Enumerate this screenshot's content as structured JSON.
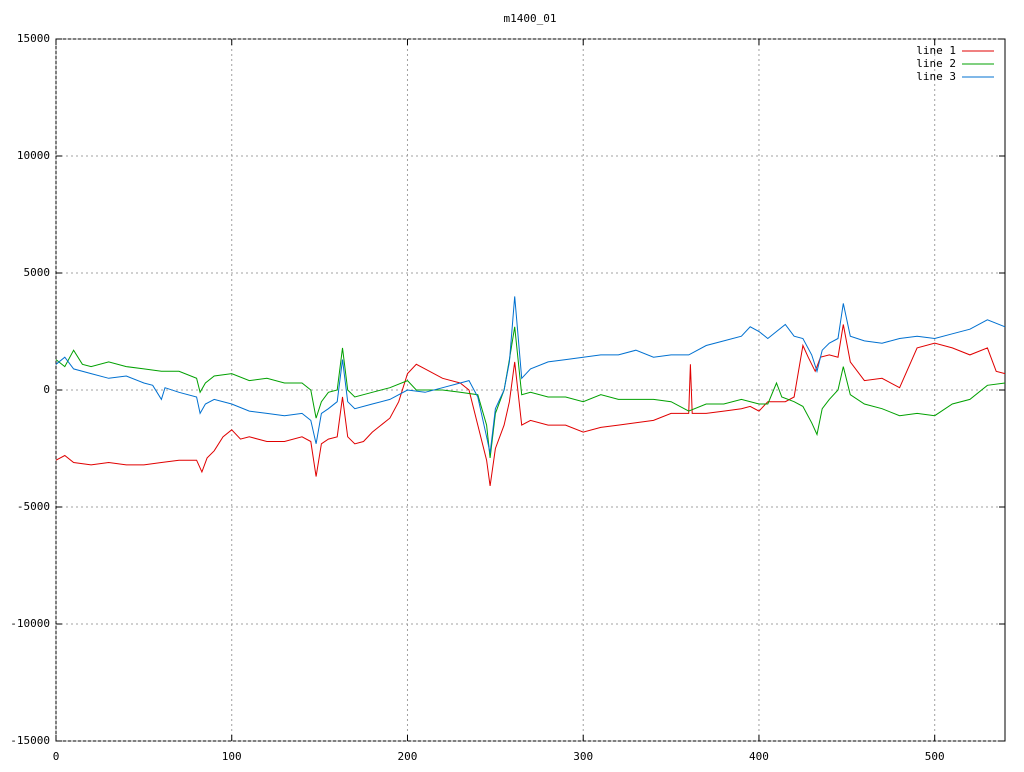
{
  "chart_data": {
    "type": "line",
    "title": "m1400_01",
    "xlim": [
      0,
      540
    ],
    "xticks": [
      0,
      100,
      200,
      300,
      400,
      500
    ],
    "ylim": [
      -15000,
      15000
    ],
    "yticks": [
      -15000,
      -10000,
      -5000,
      0,
      5000,
      10000,
      15000
    ],
    "grid": true,
    "legend": "top-right",
    "series": [
      {
        "name": "line 1",
        "color": "#e00000",
        "x": [
          0,
          5,
          10,
          20,
          30,
          40,
          50,
          60,
          70,
          80,
          83,
          86,
          90,
          95,
          100,
          105,
          110,
          120,
          130,
          140,
          145,
          148,
          151,
          155,
          160,
          163,
          166,
          170,
          175,
          180,
          190,
          195,
          200,
          205,
          210,
          220,
          230,
          235,
          240,
          245,
          247,
          250,
          255,
          258,
          261,
          265,
          270,
          280,
          290,
          300,
          310,
          320,
          330,
          340,
          350,
          360,
          361,
          362,
          370,
          380,
          390,
          395,
          400,
          405,
          410,
          415,
          420,
          425,
          428,
          432,
          435,
          440,
          445,
          448,
          452,
          460,
          470,
          480,
          490,
          500,
          510,
          520,
          530,
          535,
          540
        ],
        "values": [
          -3000,
          -2800,
          -3100,
          -3200,
          -3100,
          -3200,
          -3200,
          -3100,
          -3000,
          -3000,
          -3500,
          -2900,
          -2600,
          -2000,
          -1700,
          -2100,
          -2000,
          -2200,
          -2200,
          -2000,
          -2200,
          -3700,
          -2300,
          -2100,
          -2000,
          -300,
          -2000,
          -2300,
          -2200,
          -1800,
          -1200,
          -500,
          700,
          1100,
          900,
          500,
          300,
          0,
          -1500,
          -3000,
          -4100,
          -2500,
          -1500,
          -500,
          1200,
          -1500,
          -1300,
          -1500,
          -1500,
          -1800,
          -1600,
          -1500,
          -1400,
          -1300,
          -1000,
          -1000,
          1100,
          -1000,
          -1000,
          -900,
          -800,
          -700,
          -900,
          -500,
          -500,
          -500,
          -300,
          1900,
          1400,
          800,
          1400,
          1500,
          1400,
          2800,
          1200,
          400,
          500,
          100,
          1800,
          2000,
          1800,
          1500,
          1800,
          800,
          700
        ]
      },
      {
        "name": "line 2",
        "color": "#00a000",
        "x": [
          0,
          5,
          10,
          15,
          20,
          30,
          40,
          50,
          60,
          70,
          80,
          82,
          85,
          90,
          100,
          110,
          120,
          130,
          140,
          145,
          148,
          151,
          155,
          160,
          163,
          166,
          170,
          180,
          190,
          200,
          205,
          210,
          220,
          230,
          240,
          245,
          247,
          250,
          255,
          258,
          261,
          265,
          270,
          280,
          290,
          300,
          310,
          320,
          330,
          340,
          350,
          360,
          370,
          380,
          390,
          400,
          405,
          410,
          413,
          420,
          425,
          430,
          433,
          436,
          440,
          445,
          448,
          452,
          460,
          470,
          480,
          490,
          500,
          510,
          520,
          530,
          540
        ],
        "values": [
          1300,
          1000,
          1700,
          1100,
          1000,
          1200,
          1000,
          900,
          800,
          800,
          500,
          -100,
          300,
          600,
          700,
          400,
          500,
          300,
          300,
          0,
          -1200,
          -500,
          -100,
          0,
          1800,
          0,
          -300,
          -100,
          100,
          400,
          0,
          0,
          0,
          -100,
          -200,
          -1500,
          -2900,
          -1000,
          0,
          1300,
          2700,
          -200,
          -100,
          -300,
          -300,
          -500,
          -200,
          -400,
          -400,
          -400,
          -500,
          -900,
          -600,
          -600,
          -400,
          -600,
          -600,
          300,
          -300,
          -500,
          -700,
          -1400,
          -1900,
          -800,
          -400,
          0,
          1000,
          -200,
          -600,
          -800,
          -1100,
          -1000,
          -1100,
          -600,
          -400,
          200,
          300
        ]
      },
      {
        "name": "line 3",
        "color": "#0070d0",
        "x": [
          0,
          5,
          10,
          20,
          30,
          40,
          50,
          55,
          60,
          62,
          70,
          80,
          82,
          85,
          90,
          100,
          110,
          120,
          130,
          140,
          145,
          148,
          151,
          155,
          160,
          163,
          166,
          170,
          180,
          190,
          200,
          210,
          220,
          230,
          235,
          240,
          245,
          247,
          250,
          255,
          258,
          261,
          265,
          270,
          280,
          290,
          300,
          310,
          320,
          330,
          340,
          350,
          360,
          370,
          380,
          390,
          395,
          400,
          405,
          410,
          415,
          420,
          425,
          430,
          433,
          436,
          440,
          445,
          448,
          452,
          460,
          470,
          480,
          490,
          500,
          510,
          520,
          530,
          540
        ],
        "values": [
          1100,
          1400,
          900,
          700,
          500,
          600,
          300,
          200,
          -400,
          100,
          -100,
          -300,
          -1000,
          -600,
          -400,
          -600,
          -900,
          -1000,
          -1100,
          -1000,
          -1300,
          -2300,
          -1000,
          -800,
          -500,
          1300,
          -500,
          -800,
          -600,
          -400,
          0,
          -100,
          100,
          300,
          400,
          -300,
          -2000,
          -2700,
          -800,
          0,
          1200,
          4000,
          500,
          900,
          1200,
          1300,
          1400,
          1500,
          1500,
          1700,
          1400,
          1500,
          1500,
          1900,
          2100,
          2300,
          2700,
          2500,
          2200,
          2500,
          2800,
          2300,
          2200,
          1500,
          800,
          1700,
          2000,
          2200,
          3700,
          2300,
          2100,
          2000,
          2200,
          2300,
          2200,
          2400,
          2600,
          3000,
          2700
        ]
      }
    ]
  }
}
